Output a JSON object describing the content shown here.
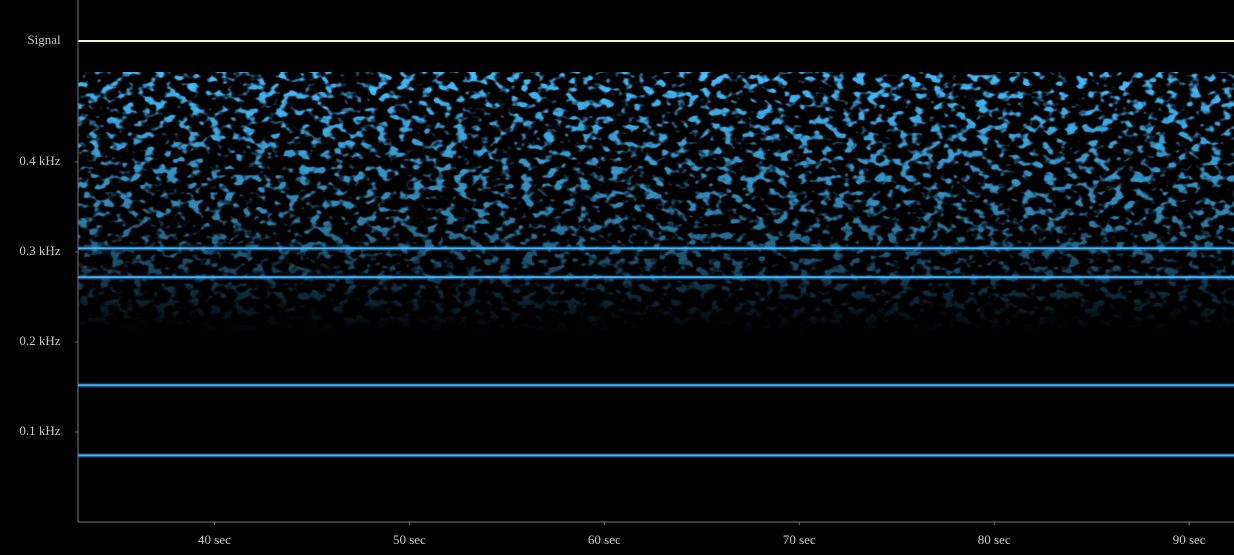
{
  "chart_data": {
    "type": "spectrogram",
    "signal_label": "Signal",
    "signal_color": "#f4f4c8",
    "xlim": [
      33,
      92.3
    ],
    "xticks": [
      {
        "value": 40,
        "label": "40  sec"
      },
      {
        "value": 50,
        "label": "50  sec"
      },
      {
        "value": 60,
        "label": "60  sec"
      },
      {
        "value": 70,
        "label": "70  sec"
      },
      {
        "value": 80,
        "label": "80  sec"
      },
      {
        "value": 90,
        "label": "90  sec"
      }
    ],
    "ylim": [
      0,
      0.5
    ],
    "yticks": [
      {
        "value": 0.1,
        "label": "0.1 kHz"
      },
      {
        "value": 0.2,
        "label": "0.2 kHz"
      },
      {
        "value": 0.3,
        "label": "0.3 kHz"
      },
      {
        "value": 0.4,
        "label": "0.4 kHz"
      }
    ],
    "tones": [
      0.304,
      0.272,
      0.152,
      0.074
    ],
    "tone_color": "#3fb4ff"
  }
}
